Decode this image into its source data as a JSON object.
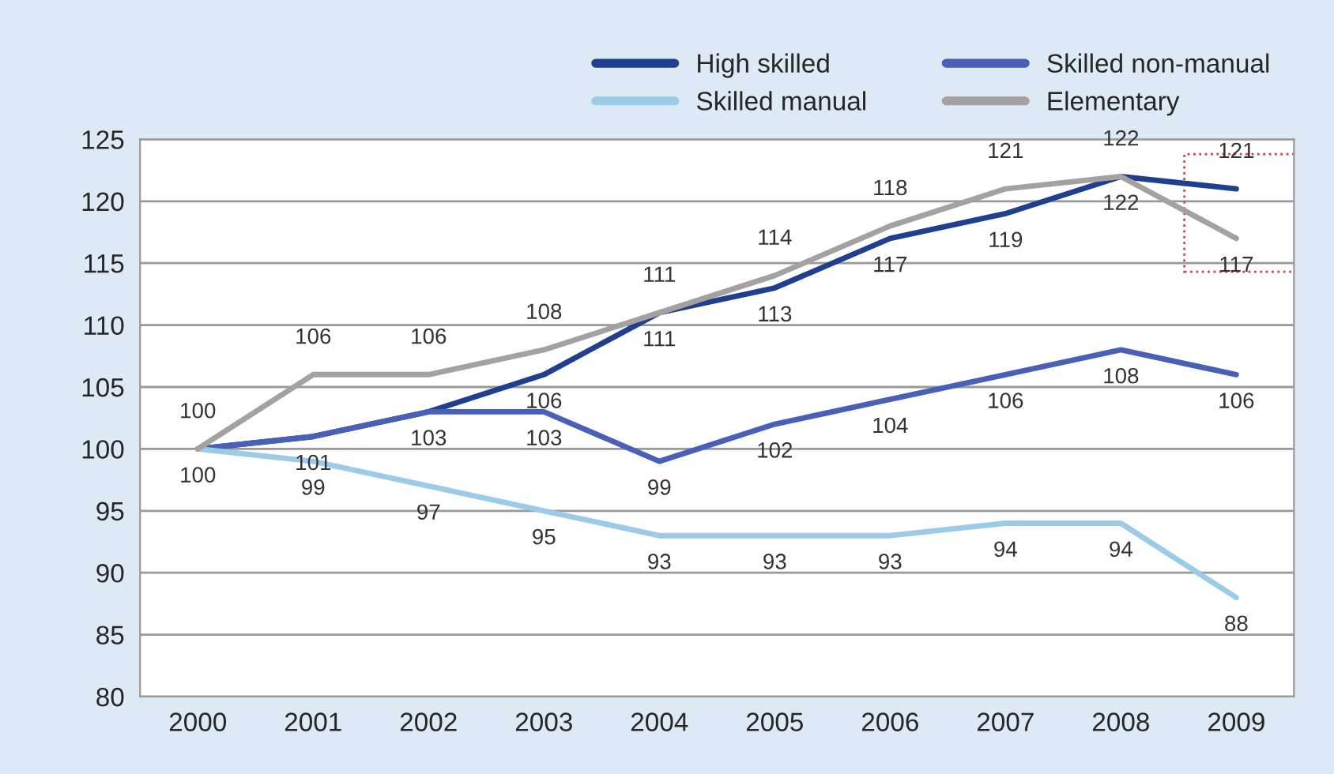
{
  "chart_data": {
    "type": "line",
    "categories": [
      "2000",
      "2001",
      "2002",
      "2003",
      "2004",
      "2005",
      "2006",
      "2007",
      "2008",
      "2009"
    ],
    "series": [
      {
        "name": "High skilled",
        "color": "#1f3f8f",
        "values": [
          100,
          101,
          103,
          106,
          111,
          113,
          117,
          119,
          122,
          121
        ],
        "value_labels": [
          "100",
          null,
          null,
          "106",
          "111",
          "113",
          "117",
          "119",
          "122",
          "121"
        ]
      },
      {
        "name": "Skilled non-manual",
        "color": "#4a5fb8",
        "values": [
          100,
          101,
          103,
          103,
          99,
          102,
          104,
          106,
          108,
          106
        ],
        "value_labels": [
          null,
          "101",
          "103",
          "103",
          "99",
          "102",
          "104",
          "106",
          "108",
          "106"
        ]
      },
      {
        "name": "Skilled manual",
        "color": "#9ccbe8",
        "values": [
          100,
          99,
          97,
          95,
          93,
          93,
          93,
          94,
          94,
          88
        ],
        "value_labels": [
          null,
          "99",
          "97",
          "95",
          "93",
          "93",
          "93",
          "94",
          "94",
          "88"
        ]
      },
      {
        "name": "Elementary",
        "color": "#a5a1a1",
        "values": [
          100,
          106,
          106,
          108,
          111,
          114,
          118,
          121,
          122,
          117
        ],
        "value_labels": [
          "100",
          "106",
          "106",
          "108",
          "111",
          "114",
          "118",
          "121",
          "122",
          "117"
        ]
      }
    ],
    "ylim": [
      80,
      125
    ],
    "yticks": [
      80,
      85,
      90,
      95,
      100,
      105,
      110,
      115,
      120,
      125
    ],
    "grid": "y",
    "legend": "top right",
    "marker": "none",
    "line_style": "solid"
  }
}
